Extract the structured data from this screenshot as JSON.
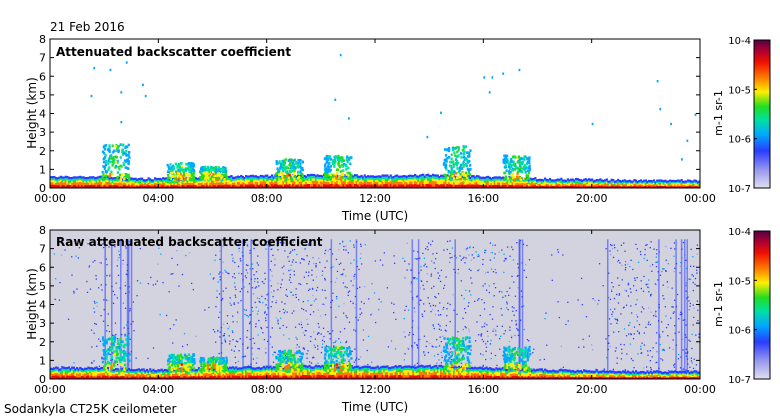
{
  "date": "21 Feb 2016",
  "footer": "Sodankyla CT25K ceilometer",
  "colors": {
    "plot_bg": "#ffffff",
    "raw_noise_bg": "#d3d3e0",
    "colormap": [
      "#e0e0f0",
      "#9999ee",
      "#2a3cff",
      "#00a8ff",
      "#00e0a0",
      "#22dd22",
      "#ffee00",
      "#ff7700",
      "#ee1100",
      "#aa0033",
      "#550044"
    ]
  },
  "chart_data": [
    {
      "type": "heatmap",
      "title": "Attenuated backscatter coefficient",
      "xlabel": "Time (UTC)",
      "ylabel": "Height (km)",
      "xlim": [
        0,
        24
      ],
      "ylim": [
        0,
        8
      ],
      "x_ticks": [
        "00:00",
        "04:00",
        "08:00",
        "12:00",
        "16:00",
        "20:00",
        "00:00"
      ],
      "y_ticks": [
        "0",
        "1",
        "2",
        "3",
        "4",
        "5",
        "6",
        "7",
        "8"
      ],
      "colorbar": {
        "label": "m-1 sr-1",
        "ticks": [
          "10-4",
          "10-5",
          "10-6",
          "10-7"
        ],
        "range_log10": [
          -7,
          -4
        ]
      },
      "boundary_layer_top_km": [
        [
          0,
          0.5
        ],
        [
          2,
          0.5
        ],
        [
          3,
          0.4
        ],
        [
          4,
          0.4
        ],
        [
          6,
          0.5
        ],
        [
          8,
          0.55
        ],
        [
          10,
          0.6
        ],
        [
          12,
          0.55
        ],
        [
          14,
          0.6
        ],
        [
          16,
          0.5
        ],
        [
          18,
          0.4
        ],
        [
          20,
          0.35
        ],
        [
          22,
          0.3
        ],
        [
          24,
          0.3
        ]
      ],
      "cloud_features": [
        {
          "time_h": 2.4,
          "top_km": 2.4
        },
        {
          "time_h": 4.8,
          "top_km": 1.4
        },
        {
          "time_h": 6.0,
          "top_km": 1.2
        },
        {
          "time_h": 8.8,
          "top_km": 1.6
        },
        {
          "time_h": 10.6,
          "top_km": 1.8
        },
        {
          "time_h": 15.0,
          "top_km": 2.3
        },
        {
          "time_h": 17.2,
          "top_km": 1.8
        }
      ],
      "noise_background": false
    },
    {
      "type": "heatmap",
      "title": "Raw attenuated backscatter coefficient",
      "xlabel": "Time (UTC)",
      "ylabel": "Height (km)",
      "xlim": [
        0,
        24
      ],
      "ylim": [
        0,
        8
      ],
      "x_ticks": [
        "00:00",
        "04:00",
        "08:00",
        "12:00",
        "16:00",
        "20:00",
        "00:00"
      ],
      "y_ticks": [
        "0",
        "1",
        "2",
        "3",
        "4",
        "5",
        "6",
        "7",
        "8"
      ],
      "colorbar": {
        "label": "m-1 sr-1",
        "ticks": [
          "10-4",
          "10-5",
          "10-6",
          "10-7"
        ],
        "range_log10": [
          -7,
          -4
        ]
      },
      "noise_background": true,
      "noise_bands_h": [
        [
          1.5,
          3.0
        ],
        [
          6.0,
          11.5
        ],
        [
          13.0,
          17.5
        ],
        [
          20.5,
          24
        ]
      ]
    }
  ]
}
